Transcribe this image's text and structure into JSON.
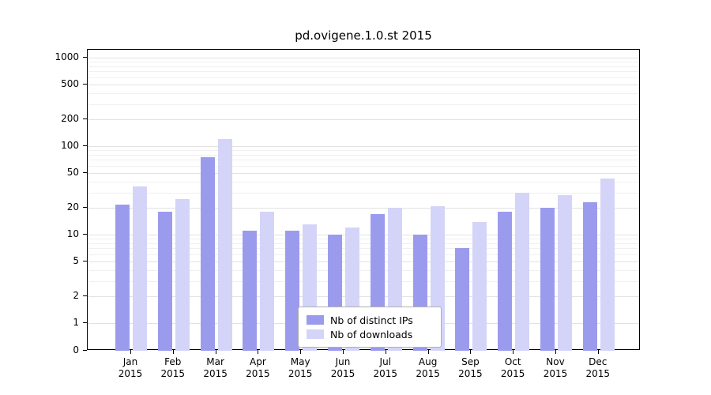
{
  "chart_data": {
    "type": "bar",
    "title": "pd.ovigene.1.0.st 2015",
    "categories": [
      "Jan",
      "Feb",
      "Mar",
      "Apr",
      "May",
      "Jun",
      "Jul",
      "Aug",
      "Sep",
      "Oct",
      "Nov",
      "Dec"
    ],
    "category_year": "2015",
    "series": [
      {
        "name": "Nb of distinct IPs",
        "color": "#9b9bee",
        "values": [
          22,
          18,
          75,
          11,
          11,
          10,
          17,
          10,
          7,
          18,
          20,
          23
        ]
      },
      {
        "name": "Nb of downloads",
        "color": "#d4d4f8",
        "values": [
          35,
          25,
          120,
          18,
          13,
          12,
          20,
          21,
          14,
          30,
          28,
          43
        ]
      }
    ],
    "xlabel": "",
    "ylabel": "",
    "y_scale": "log",
    "y_ticks": [
      0,
      1,
      2,
      5,
      10,
      20,
      50,
      100,
      200,
      500,
      1000
    ],
    "ylim": [
      0,
      1000
    ],
    "grid": "on",
    "legend_position": "bottom-center-inside"
  }
}
